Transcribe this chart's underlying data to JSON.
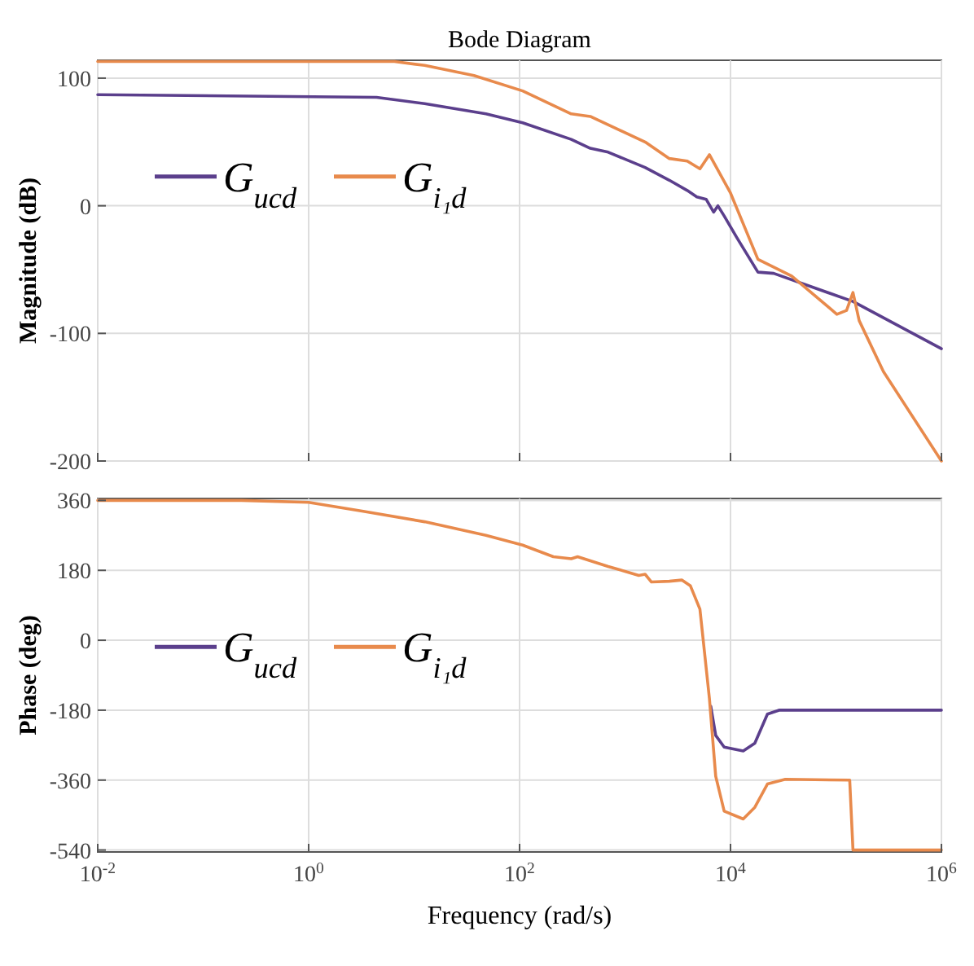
{
  "chart_data": [
    {
      "type": "line",
      "title": "Bode Diagram",
      "ylabel": "Magnitude (dB)",
      "log": "x",
      "grid": true,
      "legend": "left",
      "tick_labels": "y",
      "xlim": [
        0.01,
        1000000
      ],
      "xticks": [
        {
          "value": 0.01,
          "label": null
        },
        {
          "value": 1,
          "label": null
        },
        {
          "value": 100,
          "label": null
        },
        {
          "value": 10000,
          "label": null
        },
        {
          "value": 1000000,
          "label": null
        }
      ],
      "ylim": [
        -200,
        114
      ],
      "yticks": [
        -200,
        -100,
        0,
        100
      ],
      "series": [
        {
          "name": "G$_{ucd}$",
          "color": "#5b3f8c",
          "x": [
            0.01,
            4.4,
            12.6,
            48,
            107,
            309,
            468,
            692,
            1550,
            2630,
            3890,
            4790,
            5890,
            6920,
            7590,
            8710,
            11500,
            18200,
            25700,
            145000,
            1000000
          ],
          "values": [
            87,
            85,
            80,
            72,
            65,
            52,
            45,
            42,
            30,
            20,
            12,
            7,
            5,
            -5,
            0,
            -8,
            -25,
            -52,
            -53,
            -75,
            -112
          ]
        },
        {
          "name": "G$_{i₁d}$",
          "color": "#e88a4c",
          "x": [
            0.01,
            6.5,
            12.6,
            37,
            107,
            309,
            468,
            1550,
            2630,
            3890,
            5130,
            6310,
            10000,
            18200,
            38000,
            102000,
            126000,
            145000,
            166000,
            282000,
            1000000
          ],
          "values": [
            113,
            113,
            110,
            102,
            90,
            72,
            70,
            50,
            37,
            35,
            29,
            40,
            10,
            -42,
            -55,
            -85,
            -82,
            -68,
            -90,
            -130,
            -200
          ]
        }
      ]
    },
    {
      "type": "line",
      "xlabel": "Frequency  (rad/s)",
      "ylabel": "Phase (deg)",
      "log": "x",
      "grid": true,
      "legend": "left",
      "xlim": [
        0.01,
        1000000
      ],
      "xticks": [
        {
          "value": 0.01,
          "label": "10$^{-2}$"
        },
        {
          "value": 1,
          "label": "10$^{0}$"
        },
        {
          "value": 100,
          "label": "10$^{2}$"
        },
        {
          "value": 10000,
          "label": "10$^{4}$"
        },
        {
          "value": 1000000,
          "label": "10$^{6}$"
        }
      ],
      "ylim": [
        -545,
        365
      ],
      "yticks": [
        -540,
        -360,
        -180,
        0,
        180,
        360
      ],
      "series": [
        {
          "name": "G$_{ucd}$",
          "color": "#5b3f8c",
          "x": [
            6500,
            7240,
            8710,
            13200,
            17000,
            22400,
            28800,
            1000000
          ],
          "values": [
            -170,
            -245,
            -275,
            -285,
            -265,
            -190,
            -180,
            -180
          ]
        },
        {
          "name": "G$_{i₁d}$",
          "color": "#e88a4c",
          "x": [
            0.01,
            0.23,
            1,
            3.3,
            12.6,
            48,
            107,
            209,
            309,
            355,
            692,
            1350,
            1550,
            1780,
            2630,
            3470,
            4170,
            5130,
            6310,
            7240,
            8710,
            13200,
            17000,
            22400,
            33100,
            135000,
            145000,
            1000000
          ],
          "values": [
            360,
            360,
            355,
            332,
            305,
            270,
            245,
            215,
            210,
            215,
            190,
            167,
            170,
            150,
            152,
            155,
            140,
            80,
            -150,
            -350,
            -440,
            -460,
            -430,
            -370,
            -358,
            -360,
            -540,
            -540
          ]
        }
      ]
    }
  ]
}
